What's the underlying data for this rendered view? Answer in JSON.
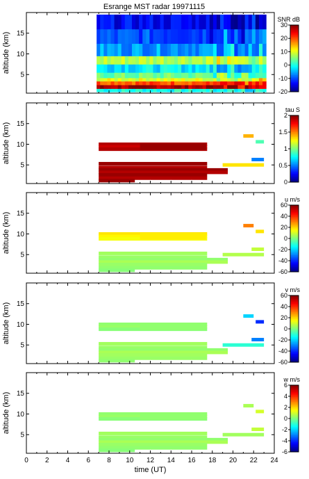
{
  "title": "Esrange MST radar 19971115",
  "chart_data": [
    {
      "type": "heatmap",
      "quantity": "SNR",
      "colorbar_label": "SNR dB",
      "colorbar_range": [
        -20,
        30
      ],
      "colorbar_ticks": [
        "30",
        "20",
        "10",
        "0",
        "-10",
        "-20"
      ],
      "ylabel": "altitude (km)",
      "yticks": [
        "15",
        "10",
        "5"
      ],
      "ylim": [
        0.5,
        20
      ],
      "xlim": [
        0,
        24
      ],
      "data_extent_hours": [
        6.8,
        23.2
      ],
      "layers": [
        {
          "alt": [
            0.8,
            1.6
          ],
          "value": 0
        },
        {
          "alt": [
            1.6,
            2.5
          ],
          "value": 28
        },
        {
          "alt": [
            2.5,
            3.4
          ],
          "value": 20
        },
        {
          "alt": [
            3.4,
            4.2
          ],
          "value": 10
        },
        {
          "alt": [
            4.2,
            5.5
          ],
          "value": 4
        },
        {
          "alt": [
            5.5,
            7.5
          ],
          "value": -2
        },
        {
          "alt": [
            7.5,
            9.5
          ],
          "value": 8
        },
        {
          "alt": [
            9.5,
            12.5
          ],
          "value": -6
        },
        {
          "alt": [
            12.5,
            16
          ],
          "value": -10
        },
        {
          "alt": [
            16,
            19.5
          ],
          "value": -14
        }
      ]
    },
    {
      "type": "heatmap",
      "quantity": "tau",
      "colorbar_label": "tau S",
      "colorbar_range": [
        0,
        2
      ],
      "colorbar_ticks": [
        "2",
        "1.5",
        "1",
        "0.5",
        "0"
      ],
      "ylabel": "altitude (km)",
      "yticks": [
        "15",
        "10",
        "5"
      ],
      "ylim": [
        0.5,
        20
      ],
      "xlim": [
        0,
        24
      ]
    },
    {
      "type": "heatmap",
      "quantity": "u",
      "colorbar_label": "u m/s",
      "colorbar_range": [
        -60,
        60
      ],
      "colorbar_ticks": [
        "60",
        "40",
        "20",
        "0",
        "-20",
        "-40",
        "-60"
      ],
      "ylabel": "altitude (km)",
      "yticks": [
        "15",
        "10",
        "5"
      ],
      "ylim": [
        0.5,
        20
      ],
      "xlim": [
        0,
        24
      ]
    },
    {
      "type": "heatmap",
      "quantity": "v",
      "colorbar_label": "v m/s",
      "colorbar_range": [
        -60,
        60
      ],
      "colorbar_ticks": [
        "60",
        "40",
        "20",
        "0",
        "-20",
        "-40",
        "-60"
      ],
      "ylabel": "altitude (km)",
      "yticks": [
        "15",
        "10",
        "5"
      ],
      "ylim": [
        0.5,
        20
      ],
      "xlim": [
        0,
        24
      ]
    },
    {
      "type": "heatmap",
      "quantity": "w",
      "colorbar_label": "w m/s",
      "colorbar_range": [
        -6,
        6
      ],
      "colorbar_ticks": [
        "6",
        "4",
        "2",
        "0",
        "-2",
        "-4",
        "-6"
      ],
      "ylabel": "altitude (km)",
      "yticks": [
        "15",
        "10",
        "5"
      ],
      "ylim": [
        0.5,
        20
      ],
      "xlim": [
        0,
        24
      ],
      "xlabel": "time (UT)",
      "xticks": [
        "0",
        "2",
        "4",
        "6",
        "8",
        "10",
        "12",
        "14",
        "16",
        "18",
        "20",
        "22",
        "24"
      ]
    }
  ],
  "sparse_layers": [
    {
      "alt": 10.0,
      "t0": 7.0,
      "t1": 17.5,
      "tau": 1.9,
      "u": 18,
      "v": 2,
      "w": 0.2
    },
    {
      "alt": 9.4,
      "t0": 7.0,
      "t1": 17.5,
      "tau": 1.85,
      "u": 16,
      "v": 3,
      "w": 0.3
    },
    {
      "alt": 8.8,
      "t0": 7.0,
      "t1": 17.5,
      "tau": 1.9,
      "u": 14,
      "v": 1,
      "w": 0.1
    },
    {
      "alt": 5.3,
      "t0": 7.0,
      "t1": 17.5,
      "tau": 1.95,
      "u": 4,
      "v": 4,
      "w": 0.4
    },
    {
      "alt": 4.4,
      "t0": 7.0,
      "t1": 17.5,
      "tau": 1.9,
      "u": 3,
      "v": 3,
      "w": 0.3
    },
    {
      "alt": 3.8,
      "t0": 7.0,
      "t1": 19.5,
      "tau": 1.95,
      "u": 2,
      "v": 2,
      "w": 0.2
    },
    {
      "alt": 3.2,
      "t0": 7.0,
      "t1": 19.5,
      "tau": 1.9,
      "u": 5,
      "v": 5,
      "w": 0.5
    },
    {
      "alt": 2.6,
      "t0": 7.0,
      "t1": 17.5,
      "tau": 1.95,
      "u": 3,
      "v": 4,
      "w": 0.3
    },
    {
      "alt": 1.8,
      "t0": 7.0,
      "t1": 17.5,
      "tau": 1.9,
      "u": 2,
      "v": 3,
      "w": 0.2
    },
    {
      "alt": 1.2,
      "t0": 7.0,
      "t1": 10.5,
      "tau": 1.95,
      "u": 1,
      "v": 2,
      "w": 0.1
    },
    {
      "alt": 12.0,
      "t0": 21.0,
      "t1": 22.0,
      "tau": 1.4,
      "u": 30,
      "v": -20,
      "w": 0.5
    },
    {
      "alt": 10.6,
      "t0": 22.2,
      "t1": 23.0,
      "tau": 0.9,
      "u": 18,
      "v": -40,
      "w": 1.0
    },
    {
      "alt": 6.3,
      "t0": 21.8,
      "t1": 23.0,
      "tau": 0.5,
      "u": 8,
      "v": -30,
      "w": 0.8
    },
    {
      "alt": 5.0,
      "t0": 19.0,
      "t1": 23.0,
      "tau": 1.3,
      "u": 6,
      "v": -10,
      "w": 0.4
    }
  ]
}
